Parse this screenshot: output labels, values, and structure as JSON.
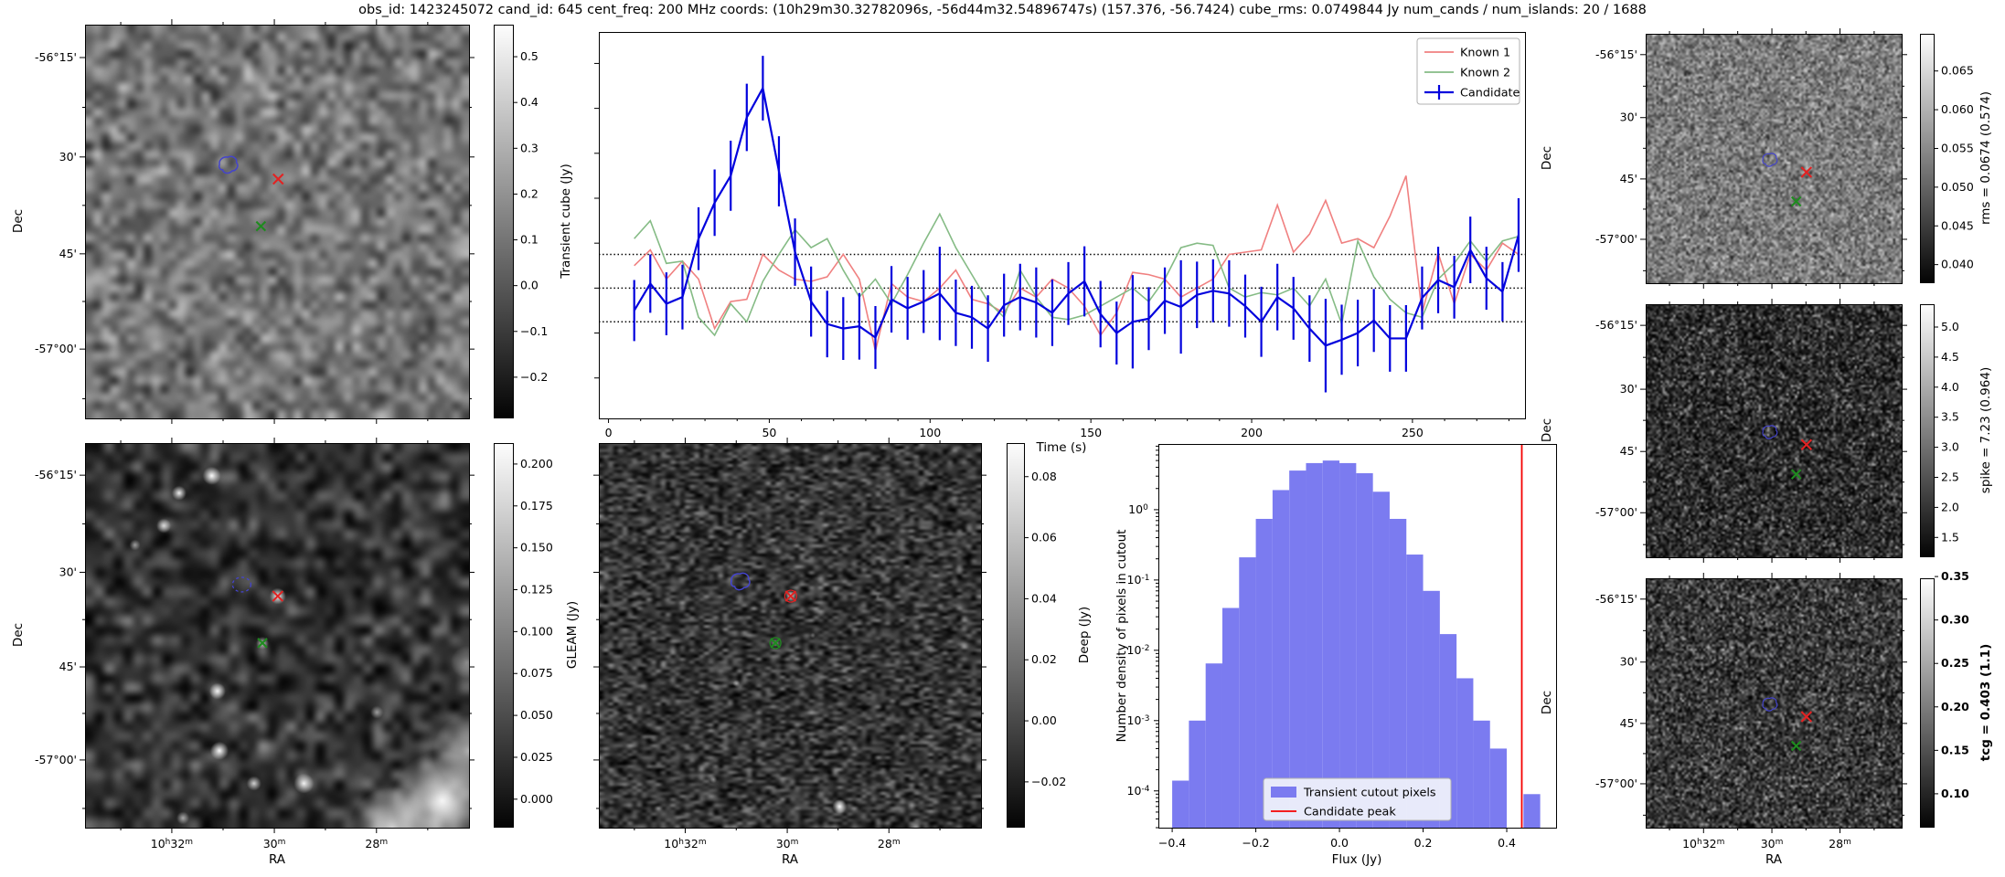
{
  "title": "obs_id: 1423245072 cand_id: 645 cent_freq: 200 MHz coords: (10h29m30.32782096s, -56d44m32.54896747s) (157.376, -56.7424) cube_rms: 0.0749844 Jy num_cands / num_islands: 20 / 1688",
  "colors": {
    "known1": "#f08080",
    "known2": "#85bb85",
    "candidate": "#0202dd",
    "hist_fill": "#7b7bf0",
    "peak_line": "#f50000",
    "contour": "#4444cc",
    "marker_red": "#e32222",
    "marker_green": "#1f8b1f",
    "dotted_line": "#000000"
  },
  "axis_text": {
    "dec_label": "Dec",
    "ra_label": "RA",
    "dec_ticks": [
      "-56°15'",
      "30'",
      "45'",
      "-57°00'"
    ],
    "ra_ticks": [
      "10h32m",
      "30m",
      "28m"
    ]
  },
  "panels": [
    {
      "id": "transient",
      "dec_labels": true,
      "ra_labels": false,
      "colorbar": {
        "label": "Transient cube (Jy)",
        "bold": false,
        "tick_labels": [
          "0.5",
          "0.4",
          "0.3",
          "0.2",
          "0.1",
          "0.0",
          "−0.1",
          "−0.2"
        ],
        "tick_values": [
          0.5,
          0.4,
          0.3,
          0.2,
          0.1,
          0,
          -0.1,
          -0.2
        ],
        "vmin": -0.29,
        "vmax": 0.57
      },
      "markers": {
        "contour": [
          0.375,
          0.358
        ],
        "red_x": [
          0.503,
          0.392
        ],
        "green_x": [
          0.458,
          0.512
        ]
      }
    },
    {
      "id": "gleam",
      "dec_labels": true,
      "ra_labels": true,
      "colorbar": {
        "label": "GLEAM (Jy)",
        "bold": false,
        "tick_labels": [
          "0.200",
          "0.175",
          "0.150",
          "0.125",
          "0.100",
          "0.075",
          "0.050",
          "0.025",
          "0.000"
        ],
        "tick_values": [
          0.2,
          0.175,
          0.15,
          0.125,
          0.1,
          0.075,
          0.05,
          0.025,
          0
        ],
        "vmin": -0.017,
        "vmax": 0.2125
      },
      "markers": {
        "contour": [
          0.408,
          0.368
        ],
        "contour_dashed": true,
        "red_x": [
          0.502,
          0.398
        ],
        "green_x": [
          0.462,
          0.52
        ]
      }
    },
    {
      "id": "deep",
      "dec_labels": false,
      "ra_labels": true,
      "colorbar": {
        "label": "Deep (Jy)",
        "bold": false,
        "tick_labels": [
          "0.08",
          "0.06",
          "0.04",
          "0.02",
          "0.00",
          "−0.02"
        ],
        "tick_values": [
          0.08,
          0.06,
          0.04,
          0.02,
          0,
          -0.02
        ],
        "vmin": -0.035,
        "vmax": 0.091
      },
      "markers": {
        "contour": [
          0.372,
          0.362
        ],
        "red_x": [
          0.502,
          0.398
        ],
        "green_x": [
          0.462,
          0.52
        ],
        "circled": true
      }
    },
    {
      "id": "rms",
      "dec_labels": true,
      "ra_labels": false,
      "colorbar": {
        "label": "rms = 0.0674 (0.574)",
        "bold": false,
        "tick_labels": [
          "0.065",
          "0.060",
          "0.055",
          "0.050",
          "0.045",
          "0.040"
        ],
        "tick_values": [
          0.065,
          0.06,
          0.055,
          0.05,
          0.045,
          0.04
        ],
        "vmin": 0.0376,
        "vmax": 0.0698
      },
      "markers": {
        "contour": [
          0.487,
          0.508
        ],
        "red_x": [
          0.628,
          0.555
        ],
        "green_x": [
          0.588,
          0.672
        ]
      }
    },
    {
      "id": "spike",
      "dec_labels": true,
      "ra_labels": false,
      "colorbar": {
        "label": "spike = 7.23 (0.964)",
        "bold": false,
        "tick_labels": [
          "5.0",
          "4.5",
          "4.0",
          "3.5",
          "3.0",
          "2.5",
          "2.0",
          "1.5"
        ],
        "tick_values": [
          5,
          4.5,
          4,
          3.5,
          3,
          2.5,
          2,
          1.5
        ],
        "vmin": 1.17,
        "vmax": 5.38
      },
      "markers": {
        "contour": [
          0.487,
          0.508
        ],
        "red_x": [
          0.628,
          0.555
        ],
        "green_x": [
          0.588,
          0.672
        ]
      }
    },
    {
      "id": "tcg",
      "dec_labels": true,
      "ra_labels": true,
      "colorbar": {
        "label": "tcg = 0.403 (1.1)",
        "bold": true,
        "tick_labels": [
          "0.35",
          "0.30",
          "0.25",
          "0.20",
          "0.15",
          "0.10"
        ],
        "tick_values": [
          0.35,
          0.3,
          0.25,
          0.2,
          0.15,
          0.1
        ],
        "vmin": 0.061,
        "vmax": 0.348
      },
      "markers": {
        "contour": [
          0.487,
          0.508
        ],
        "red_x": [
          0.628,
          0.555
        ],
        "green_x": [
          0.588,
          0.672
        ]
      }
    }
  ],
  "chart_data": [
    {
      "id": "light_curve",
      "type": "line",
      "title": "",
      "xlabel": "Time (s)",
      "ylabel": "",
      "xlim": [
        -3,
        285
      ],
      "ylim": [
        -0.29,
        0.57
      ],
      "xticks": [
        0,
        50,
        100,
        150,
        200,
        250
      ],
      "dotted_lines": [
        0.0749844,
        0,
        -0.0749844
      ],
      "legend_position": "upper right",
      "x": [
        8,
        13,
        18,
        23,
        28,
        33,
        38,
        43,
        48,
        53,
        58,
        63,
        68,
        73,
        78,
        83,
        88,
        93,
        98,
        103,
        108,
        113,
        118,
        123,
        128,
        133,
        138,
        143,
        148,
        153,
        158,
        163,
        168,
        173,
        178,
        183,
        188,
        193,
        198,
        203,
        208,
        213,
        218,
        223,
        228,
        233,
        238,
        243,
        248,
        253,
        258,
        263,
        268,
        273,
        278,
        283
      ],
      "series": [
        {
          "name": "Known 1",
          "color": "#f08080",
          "values": [
            0.05,
            0.085,
            0.02,
            0.06,
            0.02,
            -0.09,
            -0.03,
            -0.025,
            0.075,
            0.04,
            0.02,
            0.015,
            0.025,
            0.075,
            0.02,
            -0.14,
            0.01,
            -0.02,
            -0.03,
            0.0,
            0.04,
            -0.025,
            -0.035,
            -0.055,
            0.0,
            -0.02,
            0.02,
            0.0,
            -0.04,
            -0.105,
            -0.055,
            0.035,
            0.03,
            0.02,
            -0.02,
            0.0,
            0.02,
            0.075,
            0.08,
            0.085,
            0.185,
            0.08,
            0.12,
            0.195,
            0.1,
            0.11,
            0.09,
            0.16,
            0.25,
            -0.055,
            0.078,
            -0.035,
            0.075,
            0.04,
            0.1,
            0.075
          ]
        },
        {
          "name": "Known 2",
          "color": "#85bb85",
          "values": [
            0.11,
            0.15,
            0.055,
            0.06,
            -0.065,
            -0.105,
            -0.035,
            -0.075,
            0.015,
            0.075,
            0.13,
            0.09,
            0.11,
            0.04,
            -0.02,
            0.02,
            -0.035,
            0.03,
            0.1,
            0.165,
            0.09,
            0.03,
            -0.03,
            -0.065,
            0.04,
            -0.02,
            -0.065,
            -0.07,
            -0.06,
            -0.04,
            -0.02,
            0.0,
            -0.03,
            0.02,
            0.09,
            0.1,
            0.095,
            0.0,
            -0.02,
            -0.01,
            -0.015,
            0.0,
            -0.04,
            0.02,
            -0.08,
            0.105,
            0.025,
            -0.025,
            -0.055,
            -0.065,
            0.02,
            0.055,
            0.105,
            0.06,
            0.105,
            0.115
          ]
        },
        {
          "name": "Candidate",
          "color": "#0202dd",
          "values": [
            -0.05,
            0.01,
            -0.035,
            -0.02,
            0.11,
            0.19,
            0.25,
            0.38,
            0.445,
            0.26,
            0.08,
            -0.03,
            -0.08,
            -0.09,
            -0.085,
            -0.11,
            -0.025,
            -0.045,
            -0.03,
            -0.012,
            -0.055,
            -0.065,
            -0.09,
            -0.038,
            -0.02,
            -0.032,
            -0.055,
            -0.012,
            0.015,
            -0.058,
            -0.1,
            -0.075,
            -0.068,
            -0.028,
            -0.042,
            -0.015,
            -0.006,
            -0.012,
            -0.04,
            -0.075,
            -0.02,
            -0.045,
            -0.09,
            -0.128,
            -0.115,
            -0.1,
            -0.072,
            -0.112,
            -0.112,
            -0.022,
            0.018,
            0.002,
            0.085,
            0.022,
            -0.008,
            0.118
          ],
          "errors": [
            0.068,
            0.065,
            0.07,
            0.072,
            0.07,
            0.074,
            0.078,
            0.075,
            0.072,
            0.078,
            0.075,
            0.078,
            0.074,
            0.07,
            0.074,
            0.07,
            0.074,
            0.07,
            0.07,
            0.104,
            0.074,
            0.07,
            0.074,
            0.07,
            0.074,
            0.078,
            0.074,
            0.07,
            0.078,
            0.074,
            0.07,
            0.104,
            0.07,
            0.074,
            0.104,
            0.074,
            0.07,
            0.074,
            0.07,
            0.078,
            0.074,
            0.07,
            0.074,
            0.104,
            0.078,
            0.074,
            0.07,
            0.074,
            0.074,
            0.07,
            0.074,
            0.07,
            0.074,
            0.07,
            0.066,
            0.082
          ]
        }
      ]
    },
    {
      "id": "flux_histogram",
      "type": "bar",
      "xlabel": "Flux (Jy)",
      "ylabel": "Number density of pixels in cutout",
      "xlim": [
        -0.433,
        0.518
      ],
      "ylim_log": [
        3e-05,
        8.6
      ],
      "xtick_labels": [
        "−0.4",
        "−0.2",
        "0.0",
        "0.2",
        "0.4"
      ],
      "xtick_values": [
        -0.4,
        -0.2,
        0.0,
        0.2,
        0.4
      ],
      "ytick_values": [
        1,
        0.1,
        0.01,
        0.001,
        0.0001
      ],
      "ytick_exponents": [
        0,
        -1,
        -2,
        -3,
        -4
      ],
      "bin_start": -0.4,
      "bin_width": 0.04,
      "counts": [
        0.00014,
        0.001,
        0.0065,
        0.04,
        0.21,
        0.74,
        1.9,
        3.6,
        4.6,
        5.0,
        4.6,
        3.3,
        1.8,
        0.74,
        0.23,
        0.07,
        0.017,
        0.004,
        0.001,
        0.0004,
        0,
        9e-05
      ],
      "candidate_peak": 0.436,
      "legend": [
        "Transient cutout pixels",
        "Candidate peak"
      ]
    }
  ]
}
